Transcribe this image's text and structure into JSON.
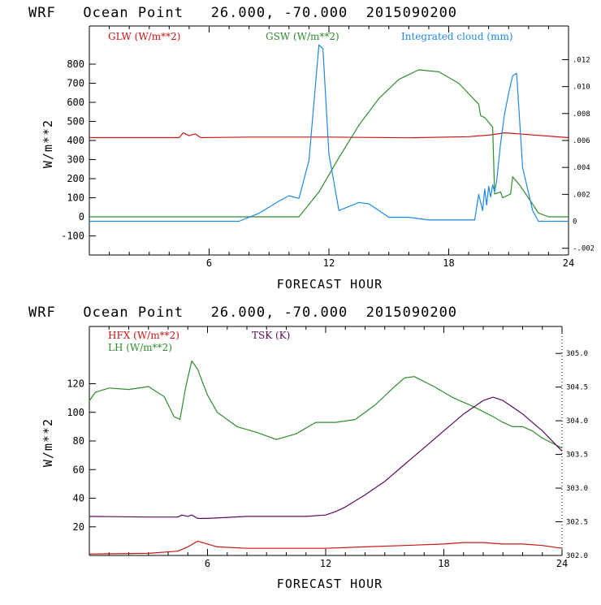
{
  "colors": {
    "red": "#c81414",
    "green": "#2e8b2e",
    "blue": "#1e88e5",
    "purple": "#5a0a5a"
  },
  "chart_data": [
    {
      "type": "line",
      "title": "WRF   Ocean Point   26.000, -70.000  2015090200",
      "xlabel": "FORECAST HOUR",
      "ylabel": "W/m**2",
      "xlim": [
        0,
        24
      ],
      "ylim": [
        -200,
        1000
      ],
      "x_ticks": [
        "6",
        "12",
        "18",
        "24"
      ],
      "y_ticks": [
        "-100",
        "0",
        "100",
        "200",
        "300",
        "400",
        "500",
        "600",
        "700",
        "800"
      ],
      "y_tick_values": [
        -100,
        0,
        100,
        200,
        300,
        400,
        500,
        600,
        700,
        800
      ],
      "right_axis": {
        "ylim": [
          -0.0025,
          0.0145
        ],
        "ticks": [
          "-.002",
          "0",
          ".002",
          ".004",
          ".006",
          ".008",
          ".010",
          ".012"
        ],
        "tick_values": [
          -0.002,
          0,
          0.002,
          0.004,
          0.006,
          0.008,
          0.01,
          0.012
        ]
      },
      "series": [
        {
          "name": "GLW (W/m**2)",
          "axis": "left",
          "color_key": "red",
          "x": [
            0,
            4.5,
            4.7,
            5.0,
            5.3,
            5.5,
            5.6,
            8,
            12,
            16,
            19,
            20,
            20.8,
            21.5,
            24
          ],
          "values": [
            415,
            415,
            440,
            425,
            435,
            420,
            415,
            418,
            418,
            414,
            420,
            428,
            440,
            435,
            415
          ]
        },
        {
          "name": "GSW (W/m**2)",
          "axis": "left",
          "color_key": "green",
          "x": [
            0,
            10.5,
            11.5,
            12.5,
            13.5,
            14.5,
            15.5,
            16.5,
            17.5,
            18.5,
            19.5,
            19.6,
            19.8,
            20.2,
            20.3,
            20.6,
            20.7,
            21.1,
            21.2,
            21.6,
            22.5,
            23.0,
            24
          ],
          "values": [
            0,
            0,
            130,
            310,
            480,
            620,
            720,
            770,
            760,
            700,
            590,
            530,
            520,
            470,
            120,
            130,
            100,
            120,
            210,
            160,
            20,
            0,
            0
          ]
        },
        {
          "name": "Integrated cloud (mm)",
          "axis": "right",
          "color_key": "blue",
          "x": [
            0,
            7.5,
            8.5,
            9.5,
            10.0,
            10.5,
            11.0,
            11.5,
            11.7,
            12.0,
            12.5,
            13.0,
            13.5,
            14.0,
            15.0,
            16.0,
            17.0,
            18.0,
            19.3,
            19.5,
            19.7,
            19.8,
            19.9,
            20.0,
            20.1,
            20.2,
            20.3,
            20.4,
            20.6,
            20.8,
            21.0,
            21.2,
            21.4,
            21.7,
            22.2,
            22.5,
            24
          ],
          "values": [
            0,
            0,
            0.0006,
            0.0015,
            0.0019,
            0.0017,
            0.0045,
            0.0131,
            0.0128,
            0.005,
            0.0008,
            0.0011,
            0.0014,
            0.0013,
            0.0003,
            0.0003,
            0.0001,
            0.0001,
            0.0001,
            0.002,
            0.0008,
            0.0024,
            0.0012,
            0.0026,
            0.0018,
            0.0027,
            0.0022,
            0.003,
            0.0058,
            0.008,
            0.0095,
            0.0108,
            0.011,
            0.004,
            0.0008,
            0,
            0
          ]
        }
      ],
      "legend": [
        "GLW (W/m**2)",
        "GSW (W/m**2)",
        "Integrated cloud (mm)"
      ]
    },
    {
      "type": "line",
      "title": "WRF   Ocean Point   26.000, -70.000  2015090200",
      "xlabel": "FORECAST HOUR",
      "ylabel": "W/m**2",
      "xlim": [
        0,
        24
      ],
      "ylim": [
        0,
        160
      ],
      "x_ticks": [
        "6",
        "12",
        "18",
        "24"
      ],
      "y_ticks": [
        "20",
        "40",
        "60",
        "80",
        "100",
        "120"
      ],
      "y_tick_values": [
        20,
        40,
        60,
        80,
        100,
        120
      ],
      "right_axis": {
        "ylim": [
          302.0,
          305.4
        ],
        "ticks": [
          "302.0",
          "302.5",
          "303.0",
          "303.5",
          "304.0",
          "304.5",
          "305.0"
        ],
        "tick_values": [
          302.0,
          302.5,
          303.0,
          303.5,
          304.0,
          304.5,
          305.0
        ]
      },
      "series": [
        {
          "name": "HFX (W/m**2)",
          "axis": "left",
          "color_key": "red",
          "x": [
            0,
            3,
            4.5,
            5.0,
            5.5,
            6.5,
            8,
            10,
            12,
            14,
            16,
            18,
            19,
            20,
            21,
            22,
            23,
            24
          ],
          "values": [
            1,
            1.5,
            3,
            6,
            10,
            6,
            5,
            5,
            5,
            6,
            7,
            8,
            9,
            9,
            8,
            8,
            7,
            5
          ]
        },
        {
          "name": "LH (W/m**2)",
          "axis": "left",
          "color_key": "green",
          "x": [
            0,
            0.3,
            1,
            2,
            3,
            3.8,
            4.3,
            4.6,
            4.9,
            5.2,
            5.5,
            6,
            6.5,
            7.5,
            8.5,
            9.5,
            10.5,
            11.5,
            12,
            12.5,
            13.5,
            14.5,
            15.5,
            16,
            16.5,
            17.5,
            18.5,
            19.5,
            20.5,
            21,
            21.5,
            22,
            22.5,
            23,
            24
          ],
          "values": [
            108,
            114,
            117,
            116,
            118,
            111,
            97,
            95,
            118,
            136,
            130,
            112,
            100,
            90,
            86,
            81,
            85,
            93,
            93,
            93,
            95,
            105,
            118,
            124,
            125,
            118,
            110,
            104,
            97,
            93,
            90,
            90,
            87,
            82,
            75
          ]
        },
        {
          "name": "TSK (K)",
          "axis": "right",
          "color_key": "purple",
          "x": [
            0,
            3,
            4.5,
            4.7,
            5.0,
            5.2,
            5.5,
            6,
            8,
            10,
            11,
            12,
            12.5,
            13,
            14,
            15,
            16,
            17,
            18,
            19,
            20,
            20.5,
            21,
            22,
            23,
            24
          ],
          "values": [
            302.58,
            302.57,
            302.57,
            302.6,
            302.58,
            302.6,
            302.55,
            302.55,
            302.58,
            302.58,
            302.58,
            302.6,
            302.65,
            302.72,
            302.9,
            303.1,
            303.35,
            303.6,
            303.85,
            304.1,
            304.3,
            304.35,
            304.3,
            304.1,
            303.85,
            303.55
          ]
        }
      ],
      "legend": [
        "HFX (W/m**2)",
        "LH (W/m**2)",
        "TSK (K)"
      ]
    }
  ]
}
